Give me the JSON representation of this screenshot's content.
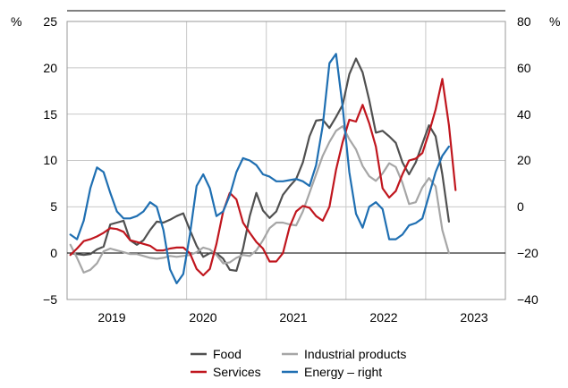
{
  "chart_data": {
    "type": "line",
    "title": "",
    "left_axis": {
      "unit": "%",
      "ylim": [
        -5,
        25
      ],
      "ticks": [
        "25",
        "20",
        "15",
        "10",
        "5",
        "0",
        "−5"
      ]
    },
    "right_axis": {
      "unit": "%",
      "ylim": [
        -40,
        80
      ],
      "ticks": [
        "80",
        "60",
        "40",
        "20",
        "0",
        "−20",
        "−40"
      ]
    },
    "x_axis": {
      "labels": [
        "2019",
        "2020",
        "2021",
        "2022",
        "2023"
      ],
      "range": [
        "2018-07",
        "2023-12"
      ]
    },
    "grid": true,
    "legend_position": "bottom",
    "series": [
      {
        "name": "Food",
        "axis": "left",
        "color": "#505050",
        "points": [
          [
            "2018-07",
            0.0
          ],
          [
            "2018-08",
            -0.1
          ],
          [
            "2018-09",
            -0.2
          ],
          [
            "2018-10",
            -0.1
          ],
          [
            "2018-11",
            0.4
          ],
          [
            "2018-12",
            0.7
          ],
          [
            "2019-01",
            3.1
          ],
          [
            "2019-02",
            3.3
          ],
          [
            "2019-03",
            3.5
          ],
          [
            "2019-04",
            1.4
          ],
          [
            "2019-05",
            0.9
          ],
          [
            "2019-06",
            1.4
          ],
          [
            "2019-07",
            2.5
          ],
          [
            "2019-08",
            3.4
          ],
          [
            "2019-09",
            3.3
          ],
          [
            "2019-10",
            3.6
          ],
          [
            "2019-11",
            4.0
          ],
          [
            "2019-12",
            4.3
          ],
          [
            "2020-01",
            2.5
          ],
          [
            "2020-02",
            0.8
          ],
          [
            "2020-03",
            -0.4
          ],
          [
            "2020-04",
            0.0
          ],
          [
            "2020-05",
            0.0
          ],
          [
            "2020-06",
            -0.6
          ],
          [
            "2020-07",
            -1.8
          ],
          [
            "2020-08",
            -1.9
          ],
          [
            "2020-09",
            0.5
          ],
          [
            "2020-10",
            4.0
          ],
          [
            "2020-11",
            6.5
          ],
          [
            "2020-12",
            4.6
          ],
          [
            "2021-01",
            3.8
          ],
          [
            "2021-02",
            4.5
          ],
          [
            "2021-03",
            6.3
          ],
          [
            "2021-04",
            7.2
          ],
          [
            "2021-05",
            8.0
          ],
          [
            "2021-06",
            9.8
          ],
          [
            "2021-07",
            12.6
          ],
          [
            "2021-08",
            14.3
          ],
          [
            "2021-09",
            14.4
          ],
          [
            "2021-10",
            13.5
          ],
          [
            "2021-11",
            14.7
          ],
          [
            "2021-12",
            16.0
          ],
          [
            "2022-01",
            19.3
          ],
          [
            "2022-02",
            21.0
          ],
          [
            "2022-03",
            19.5
          ],
          [
            "2022-04",
            16.5
          ],
          [
            "2022-05",
            13.0
          ],
          [
            "2022-06",
            13.2
          ],
          [
            "2022-07",
            12.6
          ],
          [
            "2022-08",
            11.9
          ],
          [
            "2022-09",
            9.8
          ],
          [
            "2022-10",
            8.5
          ],
          [
            "2022-11",
            9.8
          ],
          [
            "2022-12",
            11.8
          ],
          [
            "2023-01",
            13.8
          ],
          [
            "2023-02",
            12.6
          ],
          [
            "2023-03",
            8.5
          ],
          [
            "2023-04",
            3.4
          ]
        ]
      },
      {
        "name": "Industrial products",
        "axis": "left",
        "color": "#a6a6a6",
        "points": [
          [
            "2018-07",
            0.9
          ],
          [
            "2018-08",
            -0.5
          ],
          [
            "2018-09",
            -2.1
          ],
          [
            "2018-10",
            -1.8
          ],
          [
            "2018-11",
            -1.1
          ],
          [
            "2018-12",
            0.2
          ],
          [
            "2019-01",
            0.5
          ],
          [
            "2019-02",
            0.3
          ],
          [
            "2019-03",
            0.1
          ],
          [
            "2019-04",
            -0.1
          ],
          [
            "2019-05",
            -0.1
          ],
          [
            "2019-06",
            -0.3
          ],
          [
            "2019-07",
            -0.5
          ],
          [
            "2019-08",
            -0.6
          ],
          [
            "2019-09",
            -0.5
          ],
          [
            "2019-10",
            -0.3
          ],
          [
            "2019-11",
            -0.4
          ],
          [
            "2019-12",
            -0.3
          ],
          [
            "2020-01",
            -0.2
          ],
          [
            "2020-02",
            0.1
          ],
          [
            "2020-03",
            0.6
          ],
          [
            "2020-04",
            0.4
          ],
          [
            "2020-05",
            -0.2
          ],
          [
            "2020-06",
            -1.1
          ],
          [
            "2020-07",
            -1.0
          ],
          [
            "2020-08",
            -0.5
          ],
          [
            "2020-09",
            -0.2
          ],
          [
            "2020-10",
            -0.3
          ],
          [
            "2020-11",
            0.3
          ],
          [
            "2020-12",
            1.4
          ],
          [
            "2021-01",
            2.7
          ],
          [
            "2021-02",
            3.3
          ],
          [
            "2021-03",
            3.3
          ],
          [
            "2021-04",
            3.1
          ],
          [
            "2021-05",
            3.0
          ],
          [
            "2021-06",
            4.5
          ],
          [
            "2021-07",
            6.5
          ],
          [
            "2021-08",
            8.5
          ],
          [
            "2021-09",
            10.5
          ],
          [
            "2021-10",
            12.0
          ],
          [
            "2021-11",
            13.2
          ],
          [
            "2021-12",
            13.7
          ],
          [
            "2022-01",
            12.3
          ],
          [
            "2022-02",
            11.2
          ],
          [
            "2022-03",
            9.4
          ],
          [
            "2022-04",
            8.3
          ],
          [
            "2022-05",
            7.8
          ],
          [
            "2022-06",
            8.6
          ],
          [
            "2022-07",
            9.7
          ],
          [
            "2022-08",
            9.3
          ],
          [
            "2022-09",
            7.6
          ],
          [
            "2022-10",
            5.3
          ],
          [
            "2022-11",
            5.5
          ],
          [
            "2022-12",
            7.1
          ],
          [
            "2023-01",
            8.1
          ],
          [
            "2023-02",
            7.2
          ],
          [
            "2023-03",
            2.5
          ],
          [
            "2023-04",
            0.0
          ]
        ]
      },
      {
        "name": "Services",
        "axis": "left",
        "color": "#c0161e",
        "points": [
          [
            "2018-07",
            -0.2
          ],
          [
            "2018-08",
            0.5
          ],
          [
            "2018-09",
            1.3
          ],
          [
            "2018-10",
            1.5
          ],
          [
            "2018-11",
            1.8
          ],
          [
            "2018-12",
            2.2
          ],
          [
            "2019-01",
            2.7
          ],
          [
            "2019-02",
            2.6
          ],
          [
            "2019-03",
            2.3
          ],
          [
            "2019-04",
            1.4
          ],
          [
            "2019-05",
            1.2
          ],
          [
            "2019-06",
            1.0
          ],
          [
            "2019-07",
            0.8
          ],
          [
            "2019-08",
            0.3
          ],
          [
            "2019-09",
            0.3
          ],
          [
            "2019-10",
            0.5
          ],
          [
            "2019-11",
            0.6
          ],
          [
            "2019-12",
            0.6
          ],
          [
            "2020-01",
            0.0
          ],
          [
            "2020-02",
            -1.7
          ],
          [
            "2020-03",
            -2.4
          ],
          [
            "2020-04",
            -1.7
          ],
          [
            "2020-05",
            1.0
          ],
          [
            "2020-06",
            4.5
          ],
          [
            "2020-07",
            6.5
          ],
          [
            "2020-08",
            5.8
          ],
          [
            "2020-09",
            3.3
          ],
          [
            "2020-10",
            2.2
          ],
          [
            "2020-11",
            1.2
          ],
          [
            "2020-12",
            0.5
          ],
          [
            "2021-01",
            -0.9
          ],
          [
            "2021-02",
            -0.9
          ],
          [
            "2021-03",
            0.0
          ],
          [
            "2021-04",
            2.8
          ],
          [
            "2021-05",
            4.5
          ],
          [
            "2021-06",
            5.1
          ],
          [
            "2021-07",
            4.9
          ],
          [
            "2021-08",
            4.0
          ],
          [
            "2021-09",
            3.5
          ],
          [
            "2021-10",
            5.0
          ],
          [
            "2021-11",
            9.0
          ],
          [
            "2021-12",
            12.0
          ],
          [
            "2022-01",
            14.4
          ],
          [
            "2022-02",
            14.2
          ],
          [
            "2022-03",
            16.0
          ],
          [
            "2022-04",
            14.0
          ],
          [
            "2022-05",
            11.5
          ],
          [
            "2022-06",
            7.0
          ],
          [
            "2022-07",
            6.0
          ],
          [
            "2022-08",
            6.7
          ],
          [
            "2022-09",
            8.5
          ],
          [
            "2022-10",
            10.0
          ],
          [
            "2022-11",
            10.2
          ],
          [
            "2022-12",
            10.8
          ],
          [
            "2023-01",
            13.0
          ],
          [
            "2023-02",
            15.5
          ],
          [
            "2023-03",
            18.8
          ],
          [
            "2023-04",
            13.8
          ],
          [
            "2023-05",
            6.8
          ]
        ]
      },
      {
        "name": "Energy – right",
        "axis": "right",
        "color": "#1f6fb2",
        "points": [
          [
            "2018-07",
            -12
          ],
          [
            "2018-08",
            -14
          ],
          [
            "2018-09",
            -6
          ],
          [
            "2018-10",
            8
          ],
          [
            "2018-11",
            17
          ],
          [
            "2018-12",
            15
          ],
          [
            "2019-01",
            6
          ],
          [
            "2019-02",
            -2
          ],
          [
            "2019-03",
            -5
          ],
          [
            "2019-04",
            -5
          ],
          [
            "2019-05",
            -4
          ],
          [
            "2019-06",
            -2
          ],
          [
            "2019-07",
            2
          ],
          [
            "2019-08",
            0
          ],
          [
            "2019-09",
            -10
          ],
          [
            "2019-10",
            -27
          ],
          [
            "2019-11",
            -33
          ],
          [
            "2019-12",
            -29
          ],
          [
            "2020-01",
            -12
          ],
          [
            "2020-02",
            9
          ],
          [
            "2020-03",
            14
          ],
          [
            "2020-04",
            8
          ],
          [
            "2020-05",
            -4
          ],
          [
            "2020-06",
            -2
          ],
          [
            "2020-07",
            5
          ],
          [
            "2020-08",
            15
          ],
          [
            "2020-09",
            21
          ],
          [
            "2020-10",
            20
          ],
          [
            "2020-11",
            18
          ],
          [
            "2020-12",
            14
          ],
          [
            "2021-01",
            13
          ],
          [
            "2021-02",
            11
          ],
          [
            "2021-03",
            11
          ],
          [
            "2021-04",
            11.5
          ],
          [
            "2021-05",
            12
          ],
          [
            "2021-06",
            11
          ],
          [
            "2021-07",
            9
          ],
          [
            "2021-08",
            18
          ],
          [
            "2021-09",
            35
          ],
          [
            "2021-10",
            62
          ],
          [
            "2021-11",
            66
          ],
          [
            "2021-12",
            43
          ],
          [
            "2022-01",
            15
          ],
          [
            "2022-02",
            -3
          ],
          [
            "2022-03",
            -9
          ],
          [
            "2022-04",
            0
          ],
          [
            "2022-05",
            2
          ],
          [
            "2022-06",
            -1
          ],
          [
            "2022-07",
            -14
          ],
          [
            "2022-08",
            -14
          ],
          [
            "2022-09",
            -12
          ],
          [
            "2022-10",
            -8
          ],
          [
            "2022-11",
            -7
          ],
          [
            "2022-12",
            -5
          ],
          [
            "2023-01",
            5
          ],
          [
            "2023-02",
            15
          ],
          [
            "2023-03",
            22
          ],
          [
            "2023-04",
            26
          ]
        ]
      }
    ]
  },
  "legend": {
    "items": [
      {
        "label": "Food",
        "color": "#505050"
      },
      {
        "label": "Industrial products",
        "color": "#a6a6a6"
      },
      {
        "label": "Services",
        "color": "#c0161e"
      },
      {
        "label": "Energy – right",
        "color": "#1f6fb2"
      }
    ]
  }
}
